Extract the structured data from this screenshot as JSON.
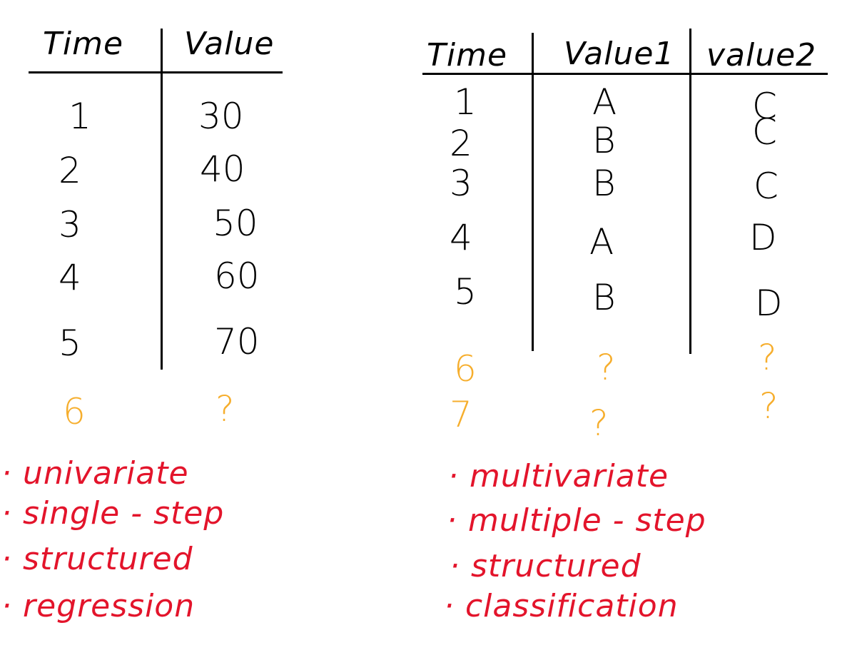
{
  "colors": {
    "ink": "#000000",
    "forecast": "#f6ae2d",
    "notes": "#e3142b"
  },
  "left_table": {
    "headers": [
      "Time",
      "Value"
    ],
    "rows": [
      [
        "1",
        "30"
      ],
      [
        "2",
        "40"
      ],
      [
        "3",
        "50"
      ],
      [
        "4",
        "60"
      ],
      [
        "5",
        "70"
      ]
    ],
    "forecast_rows": [
      [
        "6",
        "?"
      ]
    ],
    "notes": [
      "· univariate",
      "· single - step",
      "· structured",
      "· regression"
    ]
  },
  "right_table": {
    "headers": [
      "Time",
      "Value1",
      "value2"
    ],
    "rows": [
      [
        "1",
        "A",
        "C"
      ],
      [
        "2",
        "B",
        "C"
      ],
      [
        "3",
        "B",
        "C"
      ],
      [
        "4",
        "A",
        "D"
      ],
      [
        "5",
        "B",
        "D"
      ]
    ],
    "forecast_rows": [
      [
        "6",
        "?",
        "?"
      ],
      [
        "7",
        "?",
        "?"
      ]
    ],
    "notes": [
      "· multivariate",
      "· multiple - step",
      "· structured",
      "· classification"
    ]
  }
}
